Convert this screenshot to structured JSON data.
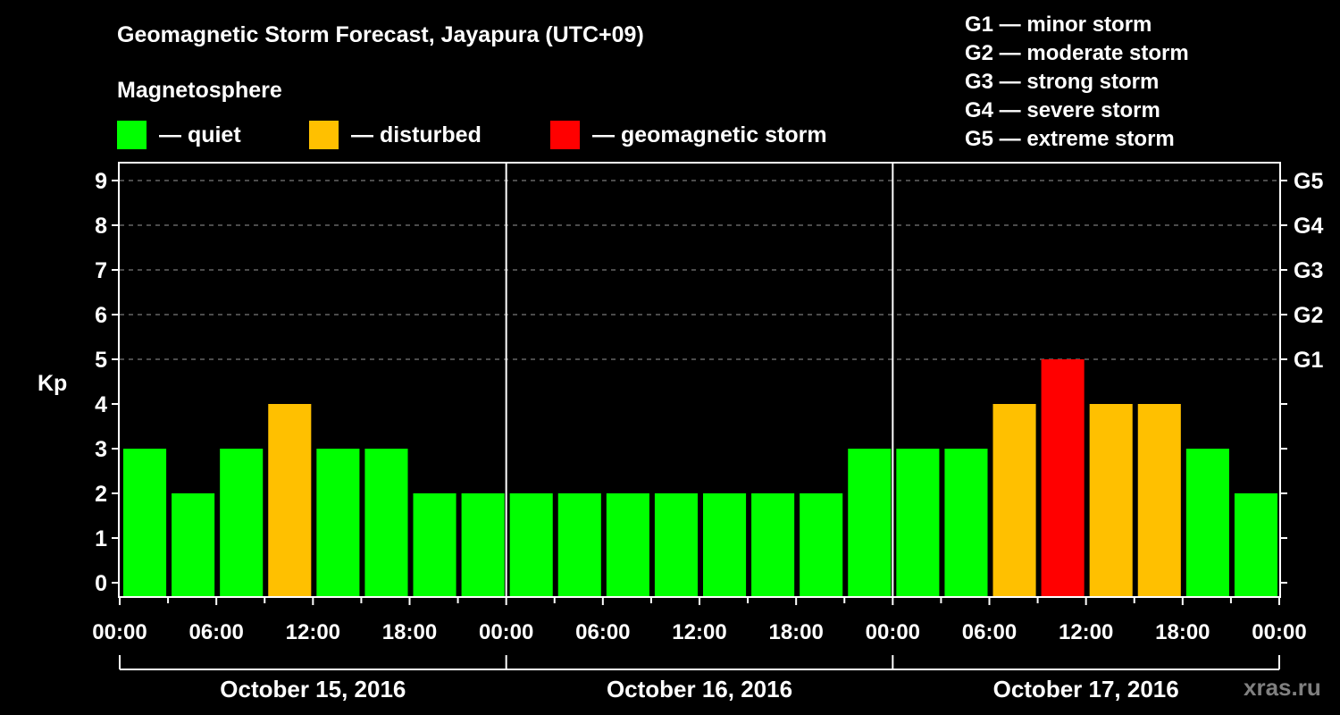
{
  "header": {
    "title": "Geomagnetic Storm Forecast, Jayapura (UTC+09)",
    "subtitle": "Magnetosphere"
  },
  "legend": [
    {
      "label": "— quiet",
      "color": "#00ff00"
    },
    {
      "label": "— disturbed",
      "color": "#ffc000"
    },
    {
      "label": "— geomagnetic storm",
      "color": "#ff0000"
    }
  ],
  "g_scale": [
    "G1 — minor storm",
    "G2 — moderate storm",
    "G3 — strong storm",
    "G4 — severe storm",
    "G5 — extreme storm"
  ],
  "watermark": "xras.ru",
  "chart_data": {
    "type": "bar",
    "title": "Geomagnetic Storm Forecast, Jayapura (UTC+09)",
    "ylabel": "Kp",
    "ylim": [
      0,
      9
    ],
    "yticks": [
      0,
      1,
      2,
      3,
      4,
      5,
      6,
      7,
      8,
      9
    ],
    "right_ticks": [
      {
        "kp": 5,
        "label": "G1"
      },
      {
        "kp": 6,
        "label": "G2"
      },
      {
        "kp": 7,
        "label": "G3"
      },
      {
        "kp": 8,
        "label": "G4"
      },
      {
        "kp": 9,
        "label": "G5"
      }
    ],
    "grid": "dashed horizontal at Kp 5-9",
    "x_tick_labels": [
      "00:00",
      "06:00",
      "12:00",
      "18:00",
      "00:00",
      "06:00",
      "12:00",
      "18:00",
      "00:00",
      "06:00",
      "12:00",
      "18:00",
      "00:00"
    ],
    "days": [
      "October 15, 2016",
      "October 16, 2016",
      "October 17, 2016"
    ],
    "interval_hours": 3,
    "categories": [
      "Oct 15 00-03",
      "Oct 15 03-06",
      "Oct 15 06-09",
      "Oct 15 09-12",
      "Oct 15 12-15",
      "Oct 15 15-18",
      "Oct 15 18-21",
      "Oct 15 21-24",
      "Oct 16 00-03",
      "Oct 16 03-06",
      "Oct 16 06-09",
      "Oct 16 09-12",
      "Oct 16 12-15",
      "Oct 16 15-18",
      "Oct 16 18-21",
      "Oct 16 21-24",
      "Oct 17 00-03",
      "Oct 17 03-06",
      "Oct 17 06-09",
      "Oct 17 09-12",
      "Oct 17 12-15",
      "Oct 17 15-18",
      "Oct 17 18-21",
      "Oct 17 21-24"
    ],
    "values": [
      3,
      2,
      3,
      4,
      3,
      3,
      2,
      2,
      2,
      2,
      2,
      2,
      2,
      2,
      2,
      3,
      3,
      3,
      4,
      5,
      4,
      4,
      3,
      2
    ],
    "color_thresholds": {
      "quiet": "#00ff00",
      "disturbed": "#ffc000",
      "storm": "#ff0000"
    }
  }
}
